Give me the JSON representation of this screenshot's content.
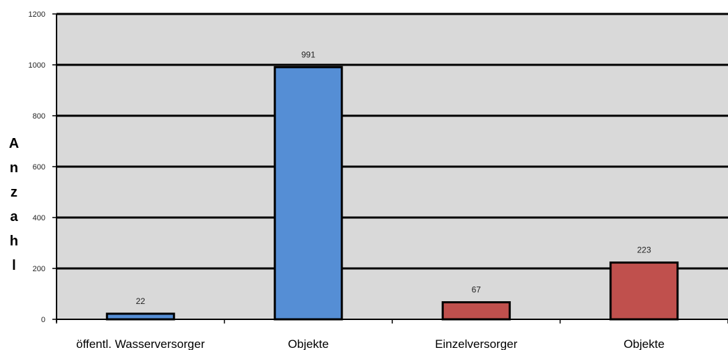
{
  "chart_data": {
    "type": "bar",
    "title": "",
    "xlabel": "",
    "ylabel": "Anzahl",
    "ylim": [
      0,
      1200
    ],
    "yticks": [
      0,
      200,
      400,
      600,
      800,
      1000,
      1200
    ],
    "grid": true,
    "legend": "none",
    "categories": [
      "öffentl. Wasserversorger",
      "Objekte",
      "Einzelversorger",
      "Objekte"
    ],
    "values": [
      22,
      991,
      67,
      223
    ],
    "data_labels": [
      "22",
      "991",
      "67",
      "223"
    ],
    "colors": [
      "#558ed5",
      "#558ed5",
      "#c0504d",
      "#c0504d"
    ],
    "plot_background": "#d9d9d9",
    "gridline_color": "#000000"
  }
}
